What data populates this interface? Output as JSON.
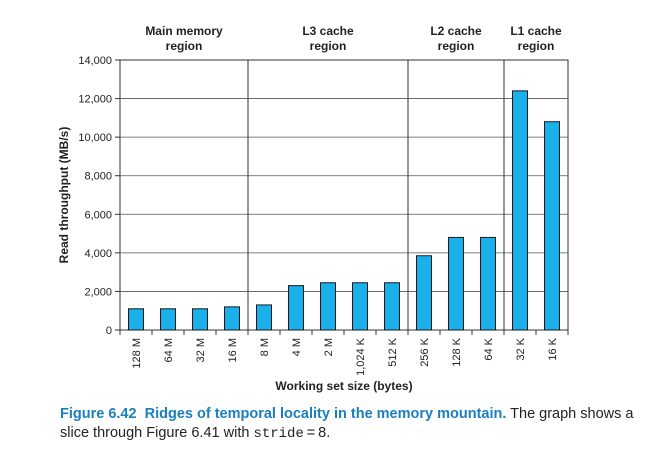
{
  "chart_data": {
    "type": "bar",
    "title": "",
    "xlabel": "Working set size (bytes)",
    "ylabel": "Read throughput (MB/s)",
    "ylim": [
      0,
      14000
    ],
    "yticks": [
      0,
      2000,
      4000,
      6000,
      8000,
      10000,
      12000,
      14000
    ],
    "ytick_labels": [
      "0",
      "2,000",
      "4,000",
      "6,000",
      "8,000",
      "10,000",
      "12,000",
      "14,000"
    ],
    "categories": [
      "128 M",
      "64 M",
      "32 M",
      "16 M",
      "8 M",
      "4 M",
      "2 M",
      "1,024 K",
      "512 K",
      "256 K",
      "128 K",
      "64 K",
      "32 K",
      "16 K"
    ],
    "values": [
      1100,
      1100,
      1100,
      1200,
      1300,
      2300,
      2450,
      2450,
      2450,
      3850,
      4800,
      4800,
      12400,
      10800
    ],
    "grid": true,
    "bar_color": "#1ab0ec",
    "regions": [
      {
        "label_line1": "Main memory",
        "label_line2": "region",
        "start_index": 0,
        "end_index": 4
      },
      {
        "label_line1": "L3 cache",
        "label_line2": "region",
        "start_index": 4,
        "end_index": 9
      },
      {
        "label_line1": "L2 cache",
        "label_line2": "region",
        "start_index": 9,
        "end_index": 12
      },
      {
        "label_line1": "L1 cache",
        "label_line2": "region",
        "start_index": 12,
        "end_index": 14
      }
    ]
  },
  "caption": {
    "figure_number": "Figure 6.42",
    "title": "Ridges of temporal locality in the memory mountain.",
    "text_before_code": " The graph shows a slice through Figure 6.41 with ",
    "code": "stride",
    "text_after_code": " = 8."
  }
}
